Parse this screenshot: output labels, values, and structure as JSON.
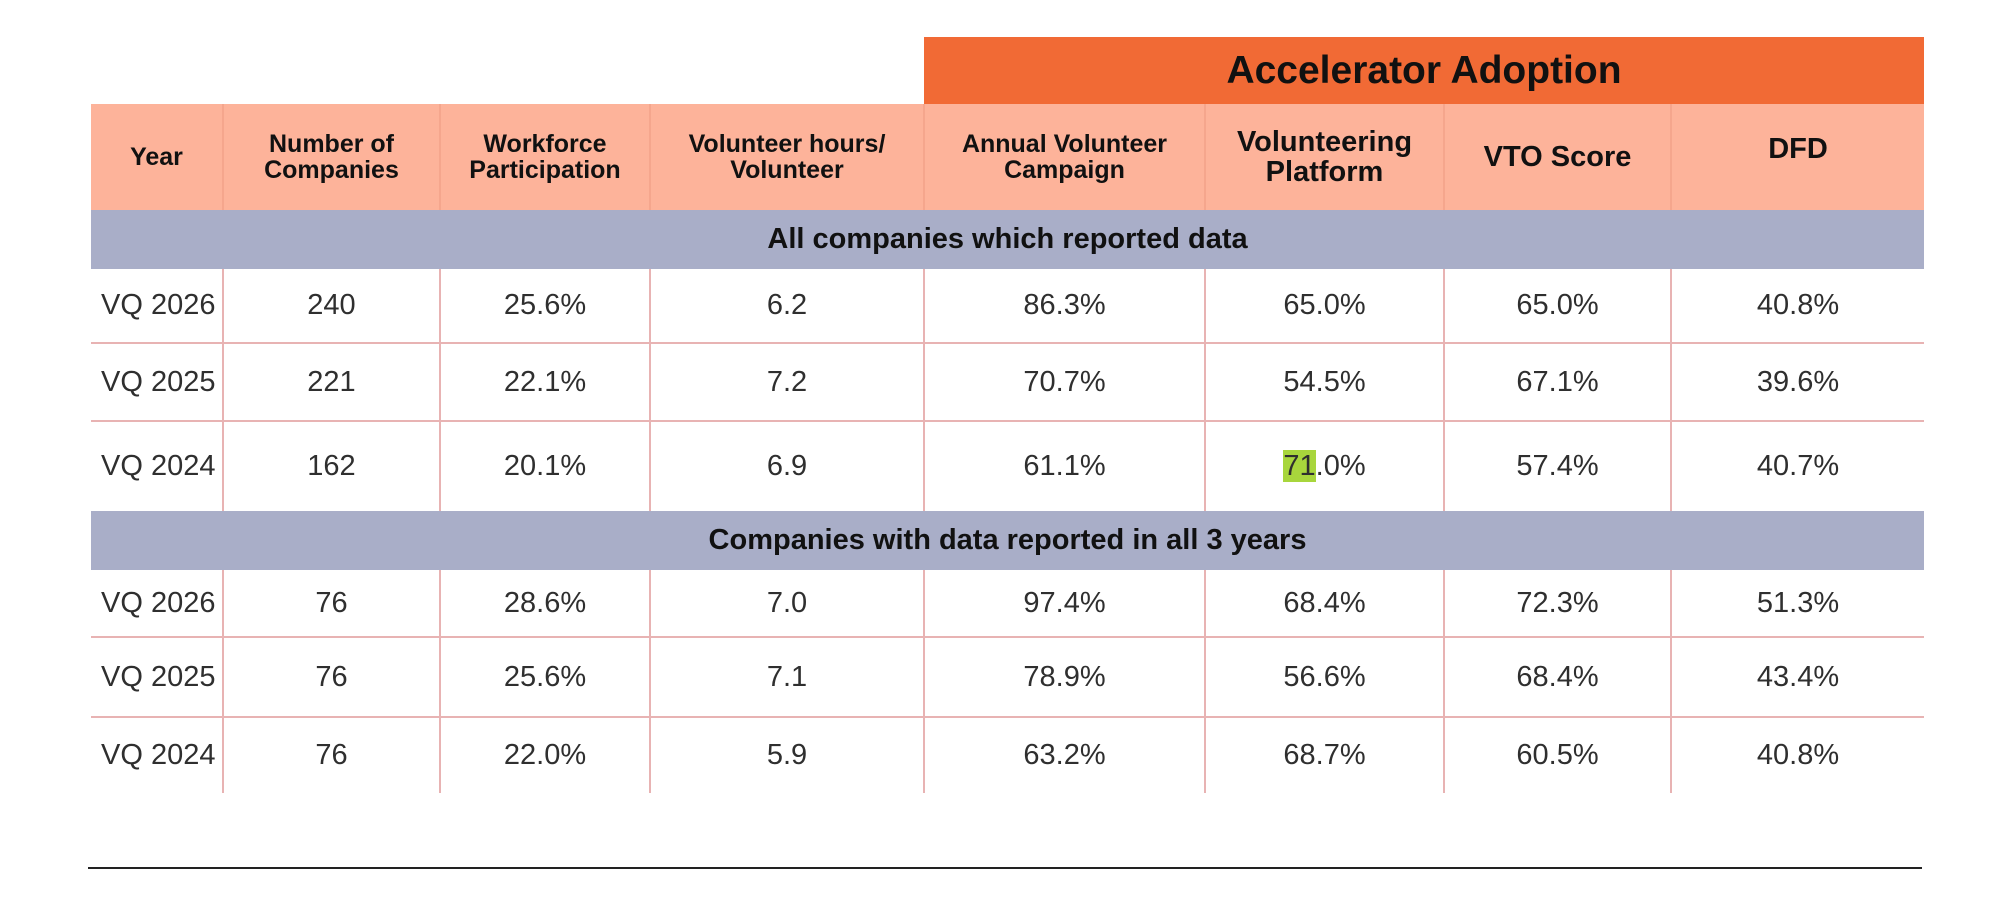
{
  "chart_data": {
    "type": "table",
    "group_header": "Accelerator Adoption",
    "columns": [
      "Year",
      "Number of Companies",
      "Workforce Participation",
      "Volunteer hours/ Volunteer",
      "Annual Volunteer Campaign",
      "Volunteering Platform",
      "VTO Score",
      "DFD"
    ],
    "sections": [
      {
        "title": "All companies which reported data",
        "rows": [
          [
            "VQ 2026",
            "240",
            "25.6%",
            "6.2",
            "86.3%",
            "65.0%",
            "65.0%",
            "40.8%"
          ],
          [
            "VQ 2025",
            "221",
            "22.1%",
            "7.2",
            "70.7%",
            "54.5%",
            "67.1%",
            "39.6%"
          ],
          [
            "VQ 2024",
            "162",
            "20.1%",
            "6.9",
            "61.1%",
            "71.0%",
            "57.4%",
            "40.7%"
          ]
        ]
      },
      {
        "title": "Companies with data reported in all 3 years",
        "rows": [
          [
            "VQ 2026",
            "76",
            "28.6%",
            "7.0",
            "97.4%",
            "68.4%",
            "72.3%",
            "51.3%"
          ],
          [
            "VQ 2025",
            "76",
            "25.6%",
            "7.1",
            "78.9%",
            "56.6%",
            "68.4%",
            "43.4%"
          ],
          [
            "VQ 2024",
            "76",
            "22.0%",
            "5.9",
            "63.2%",
            "68.7%",
            "60.5%",
            "40.8%"
          ]
        ]
      }
    ],
    "highlight": {
      "section": 0,
      "row": 2,
      "column": 5,
      "highlighted_part": "71",
      "remainder": ".0%",
      "color": "#a8d63c"
    }
  },
  "colors": {
    "banner": "#f16a35",
    "header": "#fdb39a",
    "section_band": "#a9aec8",
    "grid_lines": "#e8b3b3"
  }
}
